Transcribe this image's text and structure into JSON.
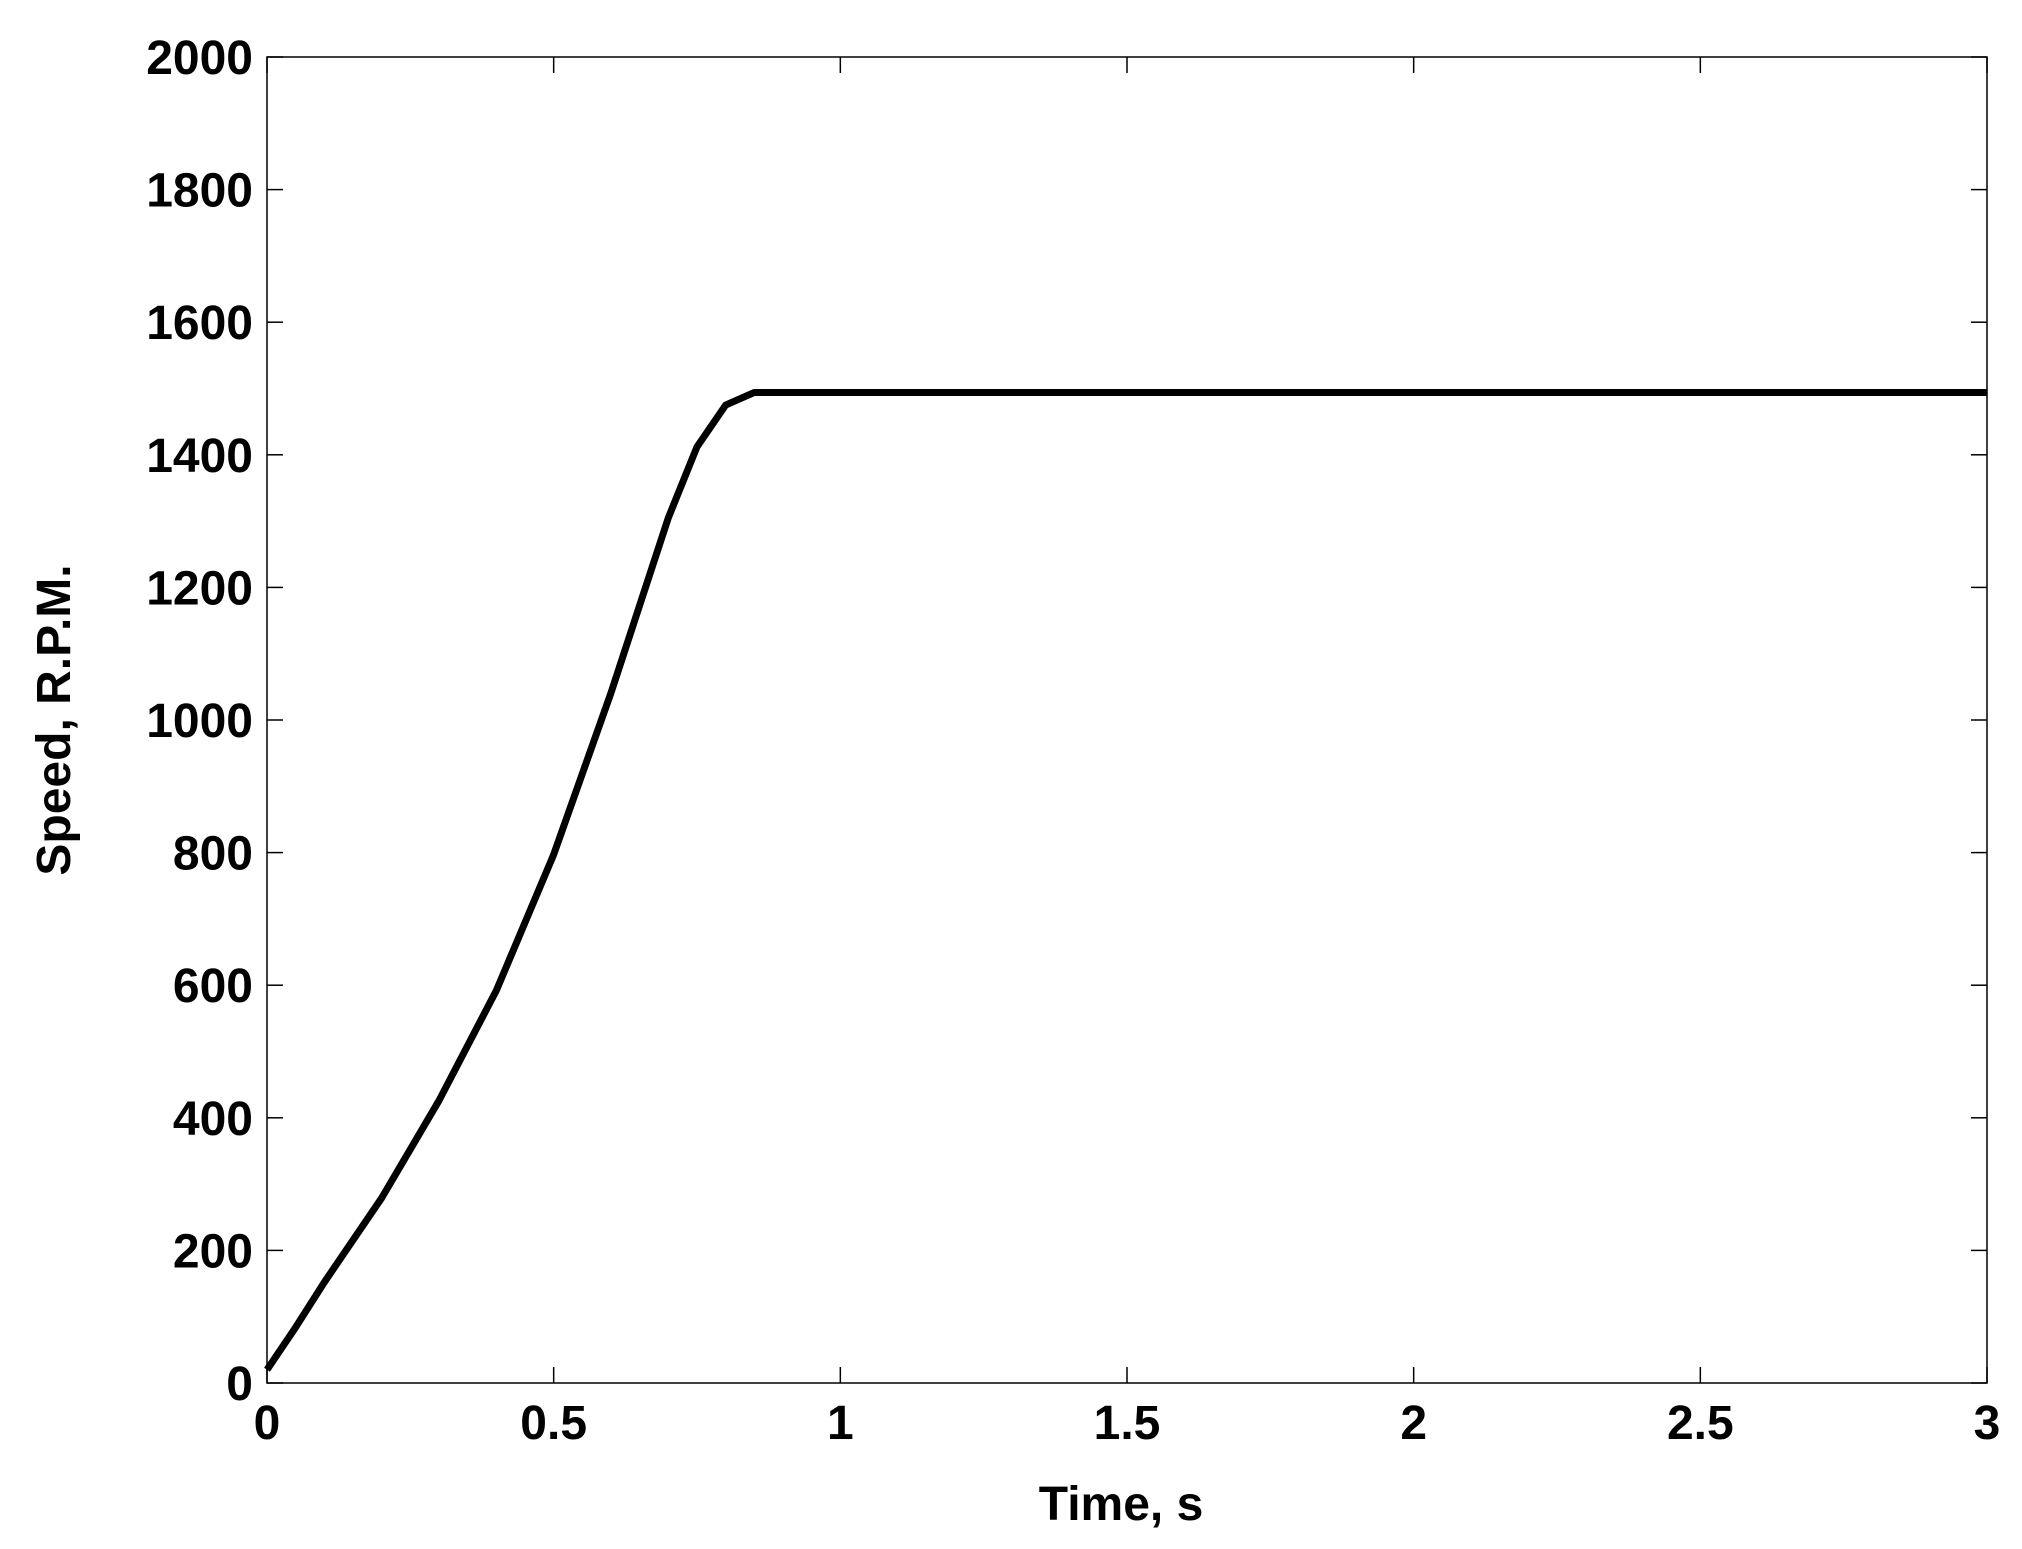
{
  "chart_data": {
    "type": "line",
    "x_label": "Time, s",
    "y_label": "Speed, R.P.M.",
    "x": [
      0,
      0.05,
      0.1,
      0.2,
      0.3,
      0.4,
      0.5,
      0.6,
      0.7,
      0.75,
      0.8,
      0.85,
      0.87,
      3
    ],
    "series": [
      {
        "name": "Speed",
        "color": "#000000",
        "values": [
          20,
          84,
          152,
          279,
          426,
          592,
          797,
          1041,
          1305,
          1412,
          1475,
          1494,
          1494,
          1494
        ]
      }
    ],
    "xlim": [
      0,
      3
    ],
    "ylim": [
      0,
      2000
    ],
    "xticks": [
      0,
      0.5,
      1,
      1.5,
      2,
      2.5,
      3
    ],
    "yticks": [
      0,
      200,
      400,
      600,
      800,
      1000,
      1200,
      1400,
      1600,
      1800,
      2000
    ],
    "grid": false
  }
}
